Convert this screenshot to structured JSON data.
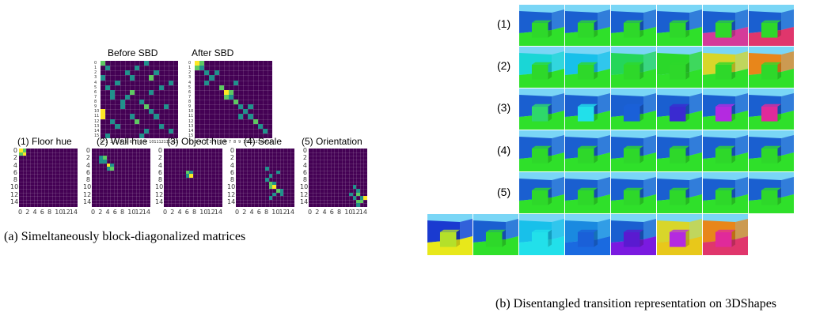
{
  "left_panel": {
    "top_titles": [
      "Before SBD",
      "After SBD"
    ],
    "bottom_titles": [
      "(1) Floor hue",
      "(2) Wall hue",
      "(3) Object hue",
      "(4) Scale",
      "(5) Orientation"
    ],
    "y_ticks": [
      "0",
      "2",
      "4",
      "6",
      "8",
      "10",
      "12",
      "14"
    ],
    "x_ticks": [
      "0",
      "2",
      "4",
      "6",
      "8",
      "10",
      "12",
      "14"
    ],
    "small_ticks": [
      "0",
      "1",
      "2",
      "3",
      "4",
      "5",
      "6",
      "7",
      "8",
      "9",
      "10",
      "11",
      "12",
      "13",
      "14",
      "15"
    ],
    "caption": "(a) Simeltaneously block-diagonalized matrices"
  },
  "right_panel": {
    "row_labels": [
      "(1)",
      "(2)",
      "(3)",
      "(4)",
      "(5)"
    ],
    "caption": "(b) Disentangled transition representation on 3DShapes",
    "rows": [
      [
        {
          "floor": "#2fe02a",
          "wall": "#1a5fd0",
          "sky": "#7ad6f6",
          "obj": "#2ed82a"
        },
        {
          "floor": "#2fe02a",
          "wall": "#1a5fd0",
          "sky": "#7ad6f6",
          "obj": "#2ed82a"
        },
        {
          "floor": "#2fe02a",
          "wall": "#1a5fd0",
          "sky": "#7ad6f6",
          "obj": "#2ed82a"
        },
        {
          "floor": "#2fe02a",
          "wall": "#1a5fd0",
          "sky": "#7ad6f6",
          "obj": "#2ed82a"
        },
        {
          "floor": "#d43b9a",
          "wall": "#1a5fd0",
          "sky": "#7ad6f6",
          "obj": "#2ed82a"
        },
        {
          "floor": "#e0366c",
          "wall": "#1a5fd0",
          "sky": "#7ad6f6",
          "obj": "#2ed82a"
        }
      ],
      [
        {
          "floor": "#2fe02a",
          "wall": "#1ad6d6",
          "sky": "#7ad6f6",
          "obj": "#2ed82a"
        },
        {
          "floor": "#2fe02a",
          "wall": "#18c0ea",
          "sky": "#7ad6f6",
          "obj": "#2ed82a"
        },
        {
          "floor": "#2fe02a",
          "wall": "#24d65a",
          "sky": "#7ad6f6",
          "obj": "#2ed82a"
        },
        {
          "floor": "#2fe02a",
          "wall": "#2bd82a",
          "sky": "#7ad6f6",
          "obj": "#2ed82a"
        },
        {
          "floor": "#2fe02a",
          "wall": "#d8d62a",
          "sky": "#7ad6f6",
          "obj": "#2ed82a"
        },
        {
          "floor": "#2fe02a",
          "wall": "#e8861a",
          "sky": "#7ad6f6",
          "obj": "#2ed82a"
        }
      ],
      [
        {
          "floor": "#2fe02a",
          "wall": "#1a5fd0",
          "sky": "#7ad6f6",
          "obj": "#2ed86a"
        },
        {
          "floor": "#2fe02a",
          "wall": "#1a5fd0",
          "sky": "#7ad6f6",
          "obj": "#22e0ea"
        },
        {
          "floor": "#2fe02a",
          "wall": "#1a5fd0",
          "sky": "#7ad6f6",
          "obj": "#1a60d8"
        },
        {
          "floor": "#2fe02a",
          "wall": "#1a5fd0",
          "sky": "#7ad6f6",
          "obj": "#3a2ad0"
        },
        {
          "floor": "#2fe02a",
          "wall": "#1a5fd0",
          "sky": "#7ad6f6",
          "obj": "#b42ae0"
        },
        {
          "floor": "#2fe02a",
          "wall": "#1a5fd0",
          "sky": "#7ad6f6",
          "obj": "#e02a9a"
        }
      ],
      [
        {
          "floor": "#2fe02a",
          "wall": "#1a5fd0",
          "sky": "#7ad6f6",
          "obj": "#2ed82a"
        },
        {
          "floor": "#2fe02a",
          "wall": "#1a5fd0",
          "sky": "#7ad6f6",
          "obj": "#2ed82a"
        },
        {
          "floor": "#2fe02a",
          "wall": "#1a5fd0",
          "sky": "#7ad6f6",
          "obj": "#2ed82a"
        },
        {
          "floor": "#2fe02a",
          "wall": "#1a5fd0",
          "sky": "#7ad6f6",
          "obj": "#2ed82a"
        },
        {
          "floor": "#2fe02a",
          "wall": "#1a5fd0",
          "sky": "#7ad6f6",
          "obj": "#2ed82a"
        },
        {
          "floor": "#2fe02a",
          "wall": "#1a5fd0",
          "sky": "#7ad6f6",
          "obj": "#2ed82a"
        }
      ],
      [
        {
          "floor": "#2fe02a",
          "wall": "#1a5fd0",
          "sky": "#7ad6f6",
          "obj": "#2ed82a"
        },
        {
          "floor": "#2fe02a",
          "wall": "#1a5fd0",
          "sky": "#7ad6f6",
          "obj": "#2ed82a"
        },
        {
          "floor": "#2fe02a",
          "wall": "#1a5fd0",
          "sky": "#7ad6f6",
          "obj": "#2ed82a"
        },
        {
          "floor": "#2fe02a",
          "wall": "#1a5fd0",
          "sky": "#7ad6f6",
          "obj": "#2ed82a"
        },
        {
          "floor": "#2fe02a",
          "wall": "#1a5fd0",
          "sky": "#7ad6f6",
          "obj": "#2ed82a"
        },
        {
          "floor": "#2fe02a",
          "wall": "#1a5fd0",
          "sky": "#7ad6f6",
          "obj": "#2ed82a"
        }
      ],
      [
        {
          "floor": "#e8e81a",
          "wall": "#1a3ad0",
          "sky": "#7ad6f6",
          "obj": "#b4e02a"
        },
        {
          "floor": "#2fe02a",
          "wall": "#1a5fd0",
          "sky": "#7ad6f6",
          "obj": "#2ed82a"
        },
        {
          "floor": "#22e0ea",
          "wall": "#18c0ea",
          "sky": "#7ad6f6",
          "obj": "#22e0ea"
        },
        {
          "floor": "#1a6ae0",
          "wall": "#1a8ae0",
          "sky": "#7ad6f6",
          "obj": "#1a60d8"
        },
        {
          "floor": "#7a1ae0",
          "wall": "#1a5fd0",
          "sky": "#7ad6f6",
          "obj": "#5a1ad0"
        },
        {
          "floor": "#e8c81a",
          "wall": "#d8d62a",
          "sky": "#7ad6f6",
          "obj": "#b42ae0"
        },
        {
          "floor": "#e0366c",
          "wall": "#e8861a",
          "sky": "#7ad6f6",
          "obj": "#e02a9a"
        }
      ]
    ]
  },
  "colors": {
    "matrix_bg": "#440154",
    "cell_dim": "#3b528b",
    "cell_mid": "#21918c",
    "cell_hi": "#5ec962",
    "cell_top": "#fde725"
  },
  "matrices": {
    "before": [
      [
        0,
        0,
        2,
        0
      ],
      [
        1,
        1,
        1
      ],
      [
        3,
        0,
        1
      ],
      [
        5,
        1,
        1
      ],
      [
        7,
        2,
        1
      ],
      [
        10,
        0,
        3
      ],
      [
        11,
        0,
        3
      ],
      [
        12,
        2,
        1
      ],
      [
        2,
        5,
        1
      ],
      [
        4,
        3,
        1
      ],
      [
        6,
        6,
        2
      ],
      [
        8,
        8,
        1
      ],
      [
        9,
        9,
        2
      ],
      [
        11,
        11,
        1
      ],
      [
        13,
        12,
        1
      ],
      [
        14,
        14,
        1
      ],
      [
        1,
        7,
        1
      ],
      [
        3,
        10,
        2
      ],
      [
        5,
        12,
        1
      ],
      [
        6,
        2,
        1
      ],
      [
        8,
        4,
        1
      ],
      [
        9,
        13,
        1
      ],
      [
        10,
        10,
        1
      ],
      [
        12,
        7,
        2
      ],
      [
        13,
        3,
        1
      ],
      [
        14,
        9,
        1
      ],
      [
        2,
        11,
        1
      ],
      [
        4,
        14,
        1
      ],
      [
        7,
        5,
        1
      ],
      [
        0,
        9,
        1
      ],
      [
        15,
        1,
        1
      ],
      [
        15,
        8,
        1
      ],
      [
        3,
        6,
        1
      ],
      [
        9,
        4,
        1
      ],
      [
        6,
        10,
        1
      ],
      [
        11,
        6,
        1
      ]
    ],
    "after": [
      [
        0,
        0,
        3
      ],
      [
        0,
        1,
        2
      ],
      [
        1,
        0,
        2
      ],
      [
        1,
        1,
        1
      ],
      [
        2,
        2,
        1
      ],
      [
        3,
        3,
        1
      ],
      [
        5,
        5,
        2
      ],
      [
        6,
        6,
        3
      ],
      [
        6,
        7,
        2
      ],
      [
        7,
        6,
        2
      ],
      [
        7,
        7,
        1
      ],
      [
        4,
        8,
        1
      ],
      [
        8,
        8,
        2
      ],
      [
        9,
        9,
        1
      ],
      [
        10,
        10,
        1
      ],
      [
        11,
        11,
        1
      ],
      [
        12,
        12,
        2
      ],
      [
        13,
        13,
        1
      ],
      [
        14,
        14,
        1
      ],
      [
        2,
        4,
        1
      ],
      [
        4,
        2,
        1
      ],
      [
        9,
        11,
        1
      ],
      [
        11,
        9,
        1
      ]
    ],
    "floor": [
      [
        0,
        0,
        3
      ],
      [
        0,
        1,
        2
      ],
      [
        1,
        0,
        2
      ],
      [
        1,
        1,
        3
      ]
    ],
    "wall": [
      [
        2,
        2,
        1
      ],
      [
        2,
        3,
        2
      ],
      [
        3,
        2,
        1
      ],
      [
        3,
        3,
        1
      ],
      [
        4,
        4,
        3
      ],
      [
        4,
        5,
        1
      ],
      [
        5,
        4,
        1
      ],
      [
        5,
        5,
        2
      ]
    ],
    "object": [
      [
        6,
        6,
        2
      ],
      [
        6,
        7,
        1
      ],
      [
        7,
        6,
        1
      ],
      [
        7,
        7,
        3
      ]
    ],
    "scale": [
      [
        5,
        8,
        1
      ],
      [
        7,
        9,
        1
      ],
      [
        8,
        8,
        1
      ],
      [
        9,
        9,
        2
      ],
      [
        9,
        10,
        1
      ],
      [
        10,
        9,
        2
      ],
      [
        10,
        10,
        3
      ],
      [
        11,
        11,
        2
      ],
      [
        12,
        10,
        1
      ],
      [
        11,
        12,
        1
      ],
      [
        12,
        12,
        1
      ],
      [
        6,
        11,
        1
      ],
      [
        13,
        9,
        1
      ]
    ],
    "orientation": [
      [
        10,
        12,
        1
      ],
      [
        11,
        13,
        1
      ],
      [
        12,
        11,
        1
      ],
      [
        12,
        13,
        2
      ],
      [
        13,
        12,
        1
      ],
      [
        13,
        14,
        1
      ],
      [
        14,
        13,
        2
      ],
      [
        14,
        14,
        2
      ],
      [
        13,
        15,
        3
      ],
      [
        15,
        13,
        1
      ]
    ]
  }
}
